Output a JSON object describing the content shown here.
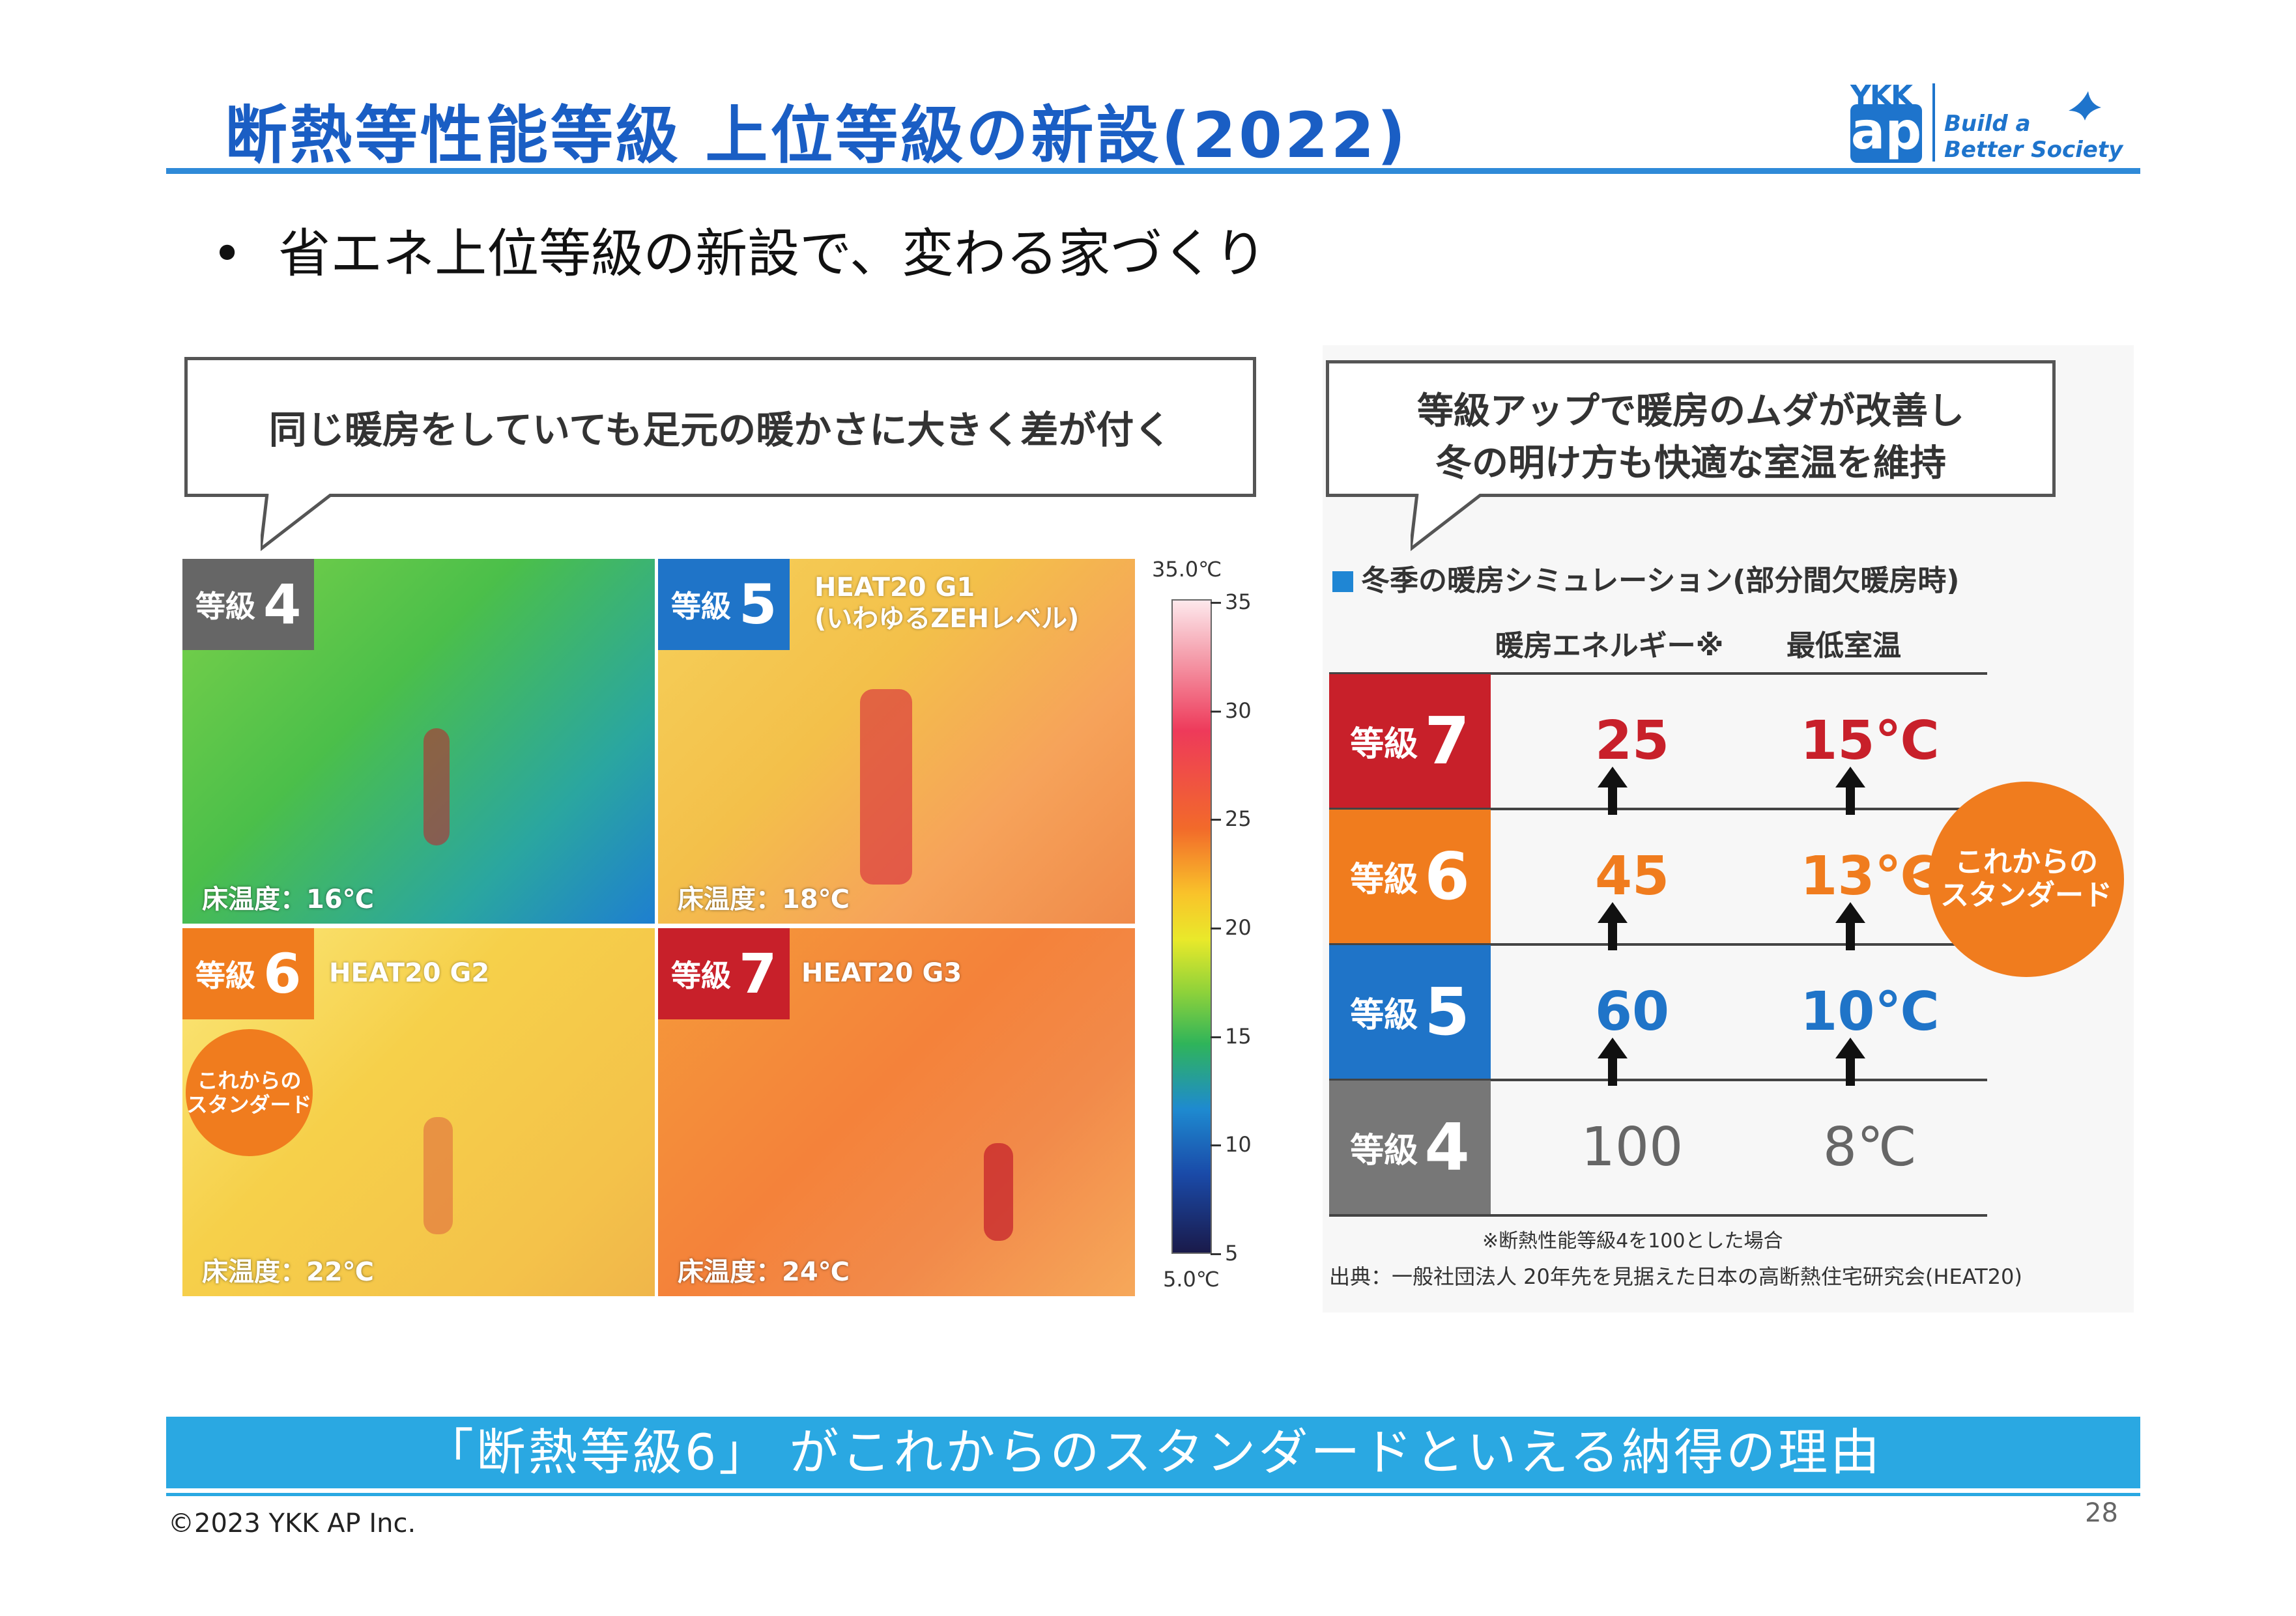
{
  "header": {
    "title": "断熱等性能等級 上位等級の新設(2022)",
    "logo_ykk": "YKK",
    "logo_ap": "ap",
    "tagline_1": "Build a",
    "tagline_2": "Better Society"
  },
  "bullet": "省エネ上位等級の新設で、変わる家づくり",
  "left_panel": {
    "bubble": "同じ暖房をしていても足元の暖かさに大きく差が付く",
    "grade_label": "等級",
    "photos": [
      {
        "grade": "4",
        "heat": "",
        "floor": "床温度：16℃"
      },
      {
        "grade": "5",
        "heat": "HEAT20 G1\n(いわゆるZEHレベル)",
        "floor": "床温度：18℃"
      },
      {
        "grade": "6",
        "heat": "HEAT20 G2",
        "floor": "床温度：22℃"
      },
      {
        "grade": "7",
        "heat": "HEAT20 G3",
        "floor": "床温度：24℃"
      }
    ],
    "standard_badge": "これからの\nスタンダード",
    "scale": {
      "top": "35.0℃",
      "bottom": "5.0℃",
      "ticks": [
        "35",
        "30",
        "25",
        "20",
        "15",
        "10",
        "5"
      ]
    }
  },
  "right_panel": {
    "bubble_line1": "等級アップで暖房のムダが改善し",
    "bubble_line2": "冬の明け方も快適な室温を維持",
    "sim_title": "冬季の暖房シミュレーション(部分間欠暖房時)",
    "col_energy": "暖房エネルギー※",
    "col_temp": "最低室温",
    "grade_label": "等級",
    "rows": [
      {
        "grade": "7",
        "energy": "25",
        "temp": "15℃",
        "color": "#c8202a",
        "value_color": "#c8202a"
      },
      {
        "grade": "6",
        "energy": "45",
        "temp": "13℃",
        "color": "#f07c1e",
        "value_color": "#f07c1e"
      },
      {
        "grade": "5",
        "energy": "60",
        "temp": "10℃",
        "color": "#1f74c8",
        "value_color": "#1f74c8"
      },
      {
        "grade": "4",
        "energy": "100",
        "temp": "8℃",
        "color": "#777777",
        "value_color": "#666666"
      }
    ],
    "standard_badge": "これからの\nスタンダード",
    "note": "※断熱性能等級4を100とした場合",
    "source": "出典：一般社団法人 20年先を見据えた日本の高断熱住宅研究会(HEAT20)"
  },
  "banner": "「断熱等級6」 がこれからのスタンダードといえる納得の理由",
  "footer": {
    "copyright": "©2023 YKK AP Inc.",
    "page": "28"
  }
}
